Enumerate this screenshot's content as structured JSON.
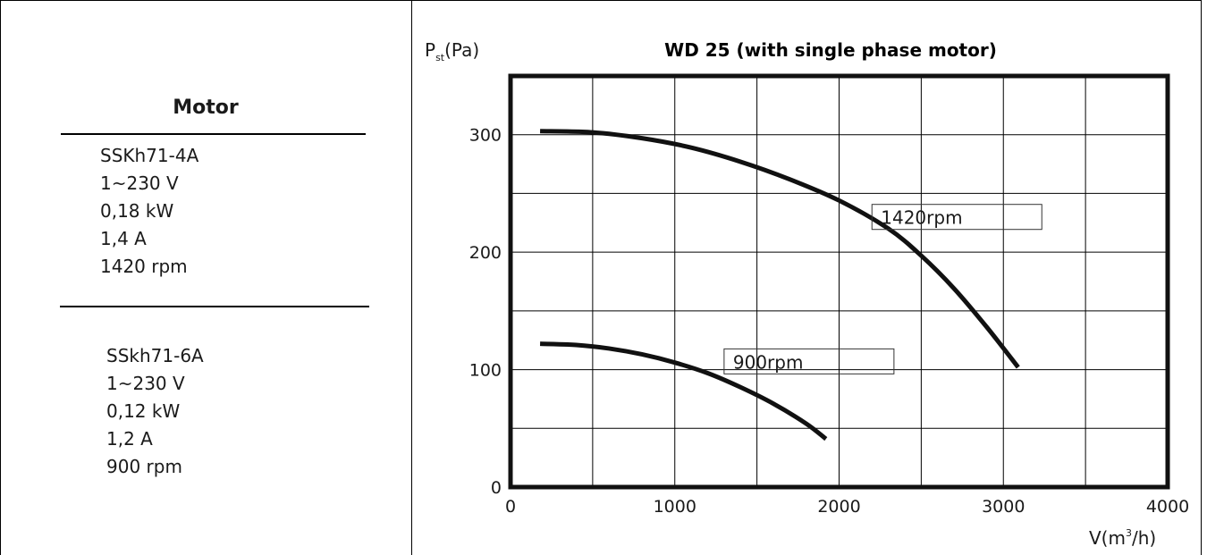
{
  "motor_panel": {
    "heading": "Motor",
    "motors": [
      {
        "lines": [
          "SSKh71-4A",
          "1~230 V",
          "0,18 kW",
          "1,4 A",
          "1420 rpm"
        ]
      },
      {
        "lines": [
          "SSkh71-6A",
          "1~230 V",
          "0,12 kW",
          "1,2 A",
          "900 rpm"
        ]
      }
    ]
  },
  "chart_data": {
    "type": "line",
    "title": "WD 25 (with single phase motor)",
    "ylabel": {
      "symbol": "P",
      "subscript": "st",
      "unit": "(Pa)"
    },
    "xlabel": {
      "prefix": "V(m",
      "superscript": "3",
      "suffix": "/h)"
    },
    "xlim": [
      0,
      4000
    ],
    "ylim": [
      0,
      350
    ],
    "x_ticks": [
      0,
      500,
      1000,
      1500,
      2000,
      2500,
      3000,
      3500,
      4000
    ],
    "y_ticks": [
      0,
      50,
      100,
      150,
      200,
      250,
      300,
      350
    ],
    "x_tick_labels": [
      {
        "value": 0,
        "label": "0"
      },
      {
        "value": 1000,
        "label": "1000"
      },
      {
        "value": 2000,
        "label": "2000"
      },
      {
        "value": 3000,
        "label": "3000"
      },
      {
        "value": 4000,
        "label": "4000"
      }
    ],
    "y_tick_labels": [
      {
        "value": 0,
        "label": "0"
      },
      {
        "value": 100,
        "label": "100"
      },
      {
        "value": 200,
        "label": "200"
      },
      {
        "value": 300,
        "label": "300"
      }
    ],
    "grid": true,
    "series": [
      {
        "name": "1420rpm",
        "label_anchor": [
          2200,
          230
        ],
        "points": [
          [
            180,
            303
          ],
          [
            500,
            302
          ],
          [
            800,
            297
          ],
          [
            1100,
            289
          ],
          [
            1400,
            277
          ],
          [
            1700,
            262
          ],
          [
            2000,
            244
          ],
          [
            2300,
            220
          ],
          [
            2500,
            197
          ],
          [
            2700,
            169
          ],
          [
            2900,
            136
          ],
          [
            3090,
            102
          ]
        ]
      },
      {
        "name": "900rpm",
        "label_anchor": [
          1300,
          107
        ],
        "points": [
          [
            180,
            122
          ],
          [
            400,
            121
          ],
          [
            600,
            118
          ],
          [
            800,
            113
          ],
          [
            1000,
            106
          ],
          [
            1200,
            97
          ],
          [
            1400,
            85
          ],
          [
            1600,
            71
          ],
          [
            1800,
            54
          ],
          [
            1920,
            41
          ]
        ]
      }
    ],
    "colors": {
      "curve": "#111111",
      "grid": "#000000",
      "frame": "#111111"
    }
  }
}
